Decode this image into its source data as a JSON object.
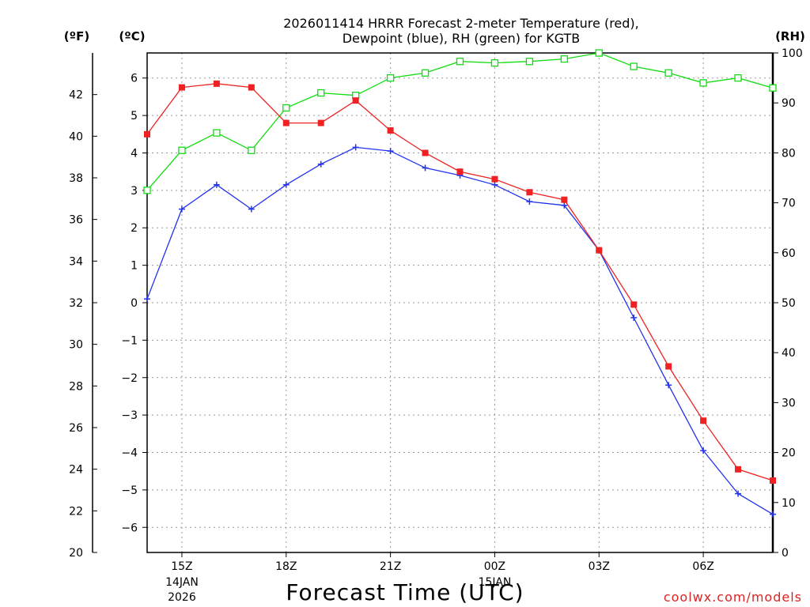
{
  "chart_data": {
    "type": "line",
    "title_line1": "2026011414 HRRR Forecast 2-meter Temperature (red),",
    "title_line2": "Dewpoint (blue), RH (green) for KGTB",
    "unit_f": "(ºF)",
    "unit_c": "(ºC)",
    "unit_rh": "(RH)",
    "xlabel": "Forecast Time (UTC)",
    "credit": "coolwx.com/models",
    "x_hours": [
      14,
      15,
      16,
      17,
      18,
      19,
      20,
      21,
      22,
      23,
      24,
      25,
      26,
      27,
      28,
      29,
      30,
      31,
      32
    ],
    "x_range": [
      14,
      32
    ],
    "c_range": [
      -6.67,
      6.67
    ],
    "f_range": [
      20,
      44
    ],
    "rh_range": [
      0,
      100
    ],
    "x_ticks": [
      {
        "h": 15,
        "label": "15Z",
        "sub1": "14JAN",
        "sub2": "2026"
      },
      {
        "h": 18,
        "label": "18Z",
        "sub1": "",
        "sub2": ""
      },
      {
        "h": 21,
        "label": "21Z",
        "sub1": "",
        "sub2": ""
      },
      {
        "h": 24,
        "label": "00Z",
        "sub1": "15JAN",
        "sub2": ""
      },
      {
        "h": 27,
        "label": "03Z",
        "sub1": "",
        "sub2": ""
      },
      {
        "h": 30,
        "label": "06Z",
        "sub1": "",
        "sub2": ""
      }
    ],
    "c_ticks": [
      6,
      5,
      4,
      3,
      2,
      1,
      0,
      -1,
      -2,
      -3,
      -4,
      -5,
      -6
    ],
    "c_tick_labels": [
      "6",
      "5",
      "4",
      "3",
      "2",
      "1",
      "0",
      "−1",
      "−2",
      "−3",
      "−4",
      "−5",
      "−6"
    ],
    "f_ticks": [
      42,
      40,
      38,
      36,
      34,
      32,
      30,
      28,
      26,
      24,
      22,
      20
    ],
    "f_tick_labels": [
      "42",
      "40",
      "38",
      "36",
      "34",
      "32",
      "30",
      "28",
      "26",
      "24",
      "22",
      "20"
    ],
    "rh_ticks": [
      100,
      90,
      80,
      70,
      60,
      50,
      40,
      30,
      20,
      10,
      0
    ],
    "rh_tick_labels": [
      "100",
      "90",
      "80",
      "70",
      "60",
      "50",
      "40",
      "30",
      "20",
      "10",
      "0"
    ],
    "series": [
      {
        "name": "Temperature",
        "unit": "C",
        "color": "#ee2222",
        "values": [
          4.5,
          5.75,
          5.85,
          5.75,
          4.8,
          4.8,
          5.4,
          4.6,
          4.0,
          3.5,
          3.3,
          2.95,
          2.75,
          1.4,
          -0.05,
          -1.7,
          -3.15,
          -4.45,
          -4.75
        ]
      },
      {
        "name": "Dewpoint",
        "unit": "C",
        "color": "#2233ee",
        "values": [
          0.1,
          2.5,
          3.15,
          2.5,
          3.15,
          3.7,
          4.15,
          4.05,
          3.6,
          3.4,
          3.15,
          2.7,
          2.6,
          1.4,
          -0.4,
          -2.2,
          -3.95,
          -5.1,
          -5.65
        ]
      },
      {
        "name": "RH",
        "unit": "%",
        "color": "#11dd11",
        "values": [
          72.5,
          80.5,
          84,
          80.5,
          89,
          92,
          91.5,
          95,
          96,
          98.3,
          98,
          98.3,
          98.8,
          100,
          97.3,
          96,
          94,
          95,
          93
        ]
      }
    ]
  }
}
